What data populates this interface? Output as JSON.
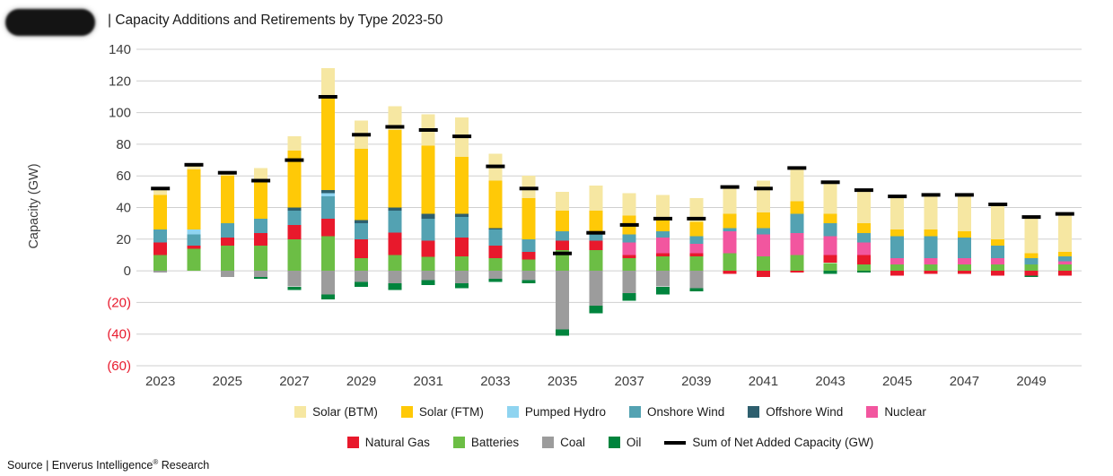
{
  "page": {
    "title": "| Capacity Additions and Retirements by Type 2023-50",
    "y_axis_label": "Capacity (GW)",
    "source_prefix": "Source | Enverus Intelligence",
    "source_reg": "®",
    "source_suffix": " Research"
  },
  "chart_data": {
    "type": "bar",
    "stacked": true,
    "title": "Capacity Additions and Retirements by Type 2023-50",
    "ylabel": "Capacity (GW)",
    "ylim": [
      -60,
      140
    ],
    "ytick_interval": 20,
    "negative_tick_format": "parentheses_red",
    "grid": "horizontal",
    "legend_position": "bottom",
    "years": [
      2023,
      2024,
      2025,
      2026,
      2027,
      2028,
      2029,
      2030,
      2031,
      2032,
      2033,
      2034,
      2035,
      2036,
      2037,
      2038,
      2039,
      2040,
      2041,
      2042,
      2043,
      2044,
      2045,
      2046,
      2047,
      2048,
      2049,
      2050
    ],
    "xtick_labels": [
      "2023",
      "2025",
      "2027",
      "2029",
      "2031",
      "2033",
      "2035",
      "2037",
      "2039",
      "2041",
      "2043",
      "2045",
      "2047",
      "2049"
    ],
    "series": [
      {
        "name": "Batteries",
        "color": "#6CBE45",
        "values": [
          10,
          14,
          16,
          16,
          20,
          22,
          8,
          10,
          9,
          9,
          8,
          7,
          13,
          13,
          8,
          9,
          9,
          11,
          9,
          10,
          5,
          4,
          4,
          4,
          4,
          4,
          4,
          4
        ]
      },
      {
        "name": "Natural Gas",
        "color": "#E8192C",
        "values": [
          8,
          2,
          5,
          8,
          9,
          11,
          12,
          14,
          10,
          12,
          8,
          5,
          6,
          6,
          2,
          2,
          2,
          -2,
          -4,
          -1,
          5,
          6,
          -3,
          -2,
          -2,
          -3,
          -3,
          -3
        ]
      },
      {
        "name": "Nuclear",
        "color": "#F2569F",
        "values": [
          0,
          0,
          0,
          0,
          0,
          0,
          0,
          0,
          0,
          0,
          0,
          0,
          0,
          0,
          8,
          10,
          6,
          14,
          14,
          14,
          12,
          8,
          4,
          4,
          4,
          4,
          0,
          2
        ]
      },
      {
        "name": "Onshore Wind",
        "color": "#53A2B2",
        "values": [
          8,
          7,
          9,
          9,
          9,
          14,
          10,
          14,
          14,
          13,
          10,
          8,
          6,
          5,
          5,
          4,
          5,
          2,
          4,
          12,
          8,
          6,
          14,
          14,
          13,
          8,
          4,
          3
        ]
      },
      {
        "name": "Pumped Hydro",
        "color": "#8FD4F0",
        "values": [
          0,
          3,
          0,
          0,
          0,
          2,
          0,
          0,
          0,
          0,
          0,
          0,
          0,
          1,
          0,
          0,
          0,
          0,
          0,
          0,
          0,
          0,
          0,
          0,
          0,
          0,
          0,
          0
        ]
      },
      {
        "name": "Offshore Wind",
        "color": "#2E5F6E",
        "values": [
          0,
          0,
          0,
          0,
          2,
          2,
          2,
          2,
          3,
          2,
          1,
          0,
          0,
          0,
          0,
          0,
          0,
          0,
          0,
          0,
          0,
          0,
          0,
          0,
          0,
          0,
          0,
          0
        ]
      },
      {
        "name": "Solar (FTM)",
        "color": "#FFC907",
        "values": [
          22,
          38,
          30,
          24,
          36,
          60,
          45,
          49,
          43,
          36,
          30,
          26,
          13,
          13,
          12,
          9,
          9,
          9,
          10,
          8,
          6,
          6,
          4,
          4,
          4,
          4,
          3,
          3
        ]
      },
      {
        "name": "Solar (BTM)",
        "color": "#F6E7A2",
        "values": [
          3,
          4,
          3,
          8,
          9,
          17,
          18,
          15,
          20,
          25,
          17,
          14,
          12,
          16,
          14,
          14,
          15,
          18,
          20,
          21,
          21,
          22,
          21,
          22,
          23,
          22,
          23,
          24
        ]
      },
      {
        "name": "Coal",
        "color": "#9C9C9C",
        "values": [
          -1,
          0,
          -4,
          -4,
          -10,
          -15,
          -7,
          -8,
          -6,
          -8,
          -5,
          -6,
          -37,
          -22,
          -14,
          -10,
          -11,
          0,
          0,
          0,
          0,
          0,
          0,
          0,
          0,
          0,
          0,
          0
        ]
      },
      {
        "name": "Oil",
        "color": "#00843D",
        "values": [
          0,
          0,
          0,
          -1,
          -2,
          -3,
          -3,
          -4,
          -3,
          -3,
          -2,
          -2,
          -4,
          -5,
          -5,
          -5,
          -2,
          0,
          0,
          0,
          -2,
          -1,
          0,
          0,
          0,
          0,
          -1,
          0
        ]
      }
    ],
    "net": {
      "name": "Sum of Net Added Capacity (GW)",
      "color": "#000000",
      "values": [
        52,
        67,
        62,
        57,
        70,
        110,
        86,
        91,
        89,
        85,
        66,
        52,
        11,
        24,
        29,
        33,
        33,
        53,
        52,
        65,
        56,
        51,
        47,
        48,
        48,
        42,
        34,
        36
      ]
    },
    "legend_rows": [
      [
        "Solar (BTM)",
        "Solar (FTM)",
        "Pumped Hydro",
        "Onshore Wind",
        "Offshore Wind",
        "Nuclear"
      ],
      [
        "Natural Gas",
        "Batteries",
        "Coal",
        "Oil",
        "Sum of Net Added Capacity (GW)"
      ]
    ]
  }
}
